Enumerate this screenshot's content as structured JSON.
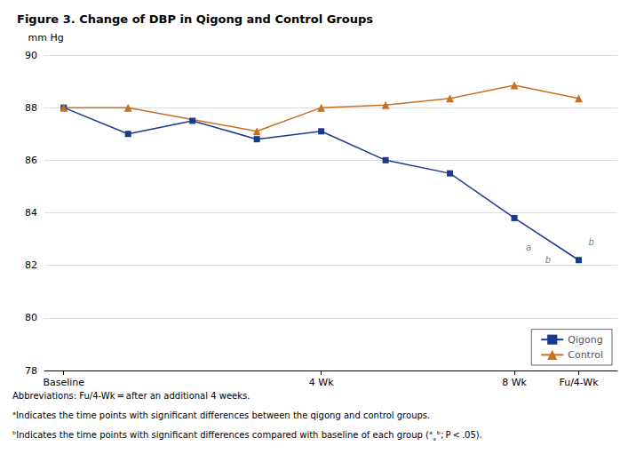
{
  "chart_data": {
    "type": "line",
    "title": "Figure 3. Change of DBP in Qigong and Control Groups",
    "y_label": "mm Hg",
    "series": [
      {
        "name": "Qigong",
        "color": "#1a3a8c",
        "marker": "square",
        "x": [
          0,
          1,
          2,
          3,
          4,
          5,
          6,
          7,
          8
        ],
        "values": [
          88.0,
          87.0,
          87.5,
          86.8,
          87.1,
          86.0,
          85.5,
          83.8,
          82.2
        ]
      },
      {
        "name": "Control",
        "color": "#c87020",
        "marker": "triangle",
        "x": [
          0,
          1,
          3,
          4,
          5,
          6,
          7,
          8
        ],
        "values": [
          88.0,
          88.0,
          87.1,
          88.0,
          88.1,
          88.35,
          88.85,
          88.35
        ]
      }
    ],
    "xlim": [
      -0.3,
      8.6
    ],
    "xticks": [
      {
        "value": 0,
        "label": "Baseline"
      },
      {
        "value": 4,
        "label": "4 Wk"
      },
      {
        "value": 7,
        "label": "8 Wk"
      },
      {
        "value": 8,
        "label": "Fu/4-Wk"
      }
    ],
    "ylim": [
      78,
      90
    ],
    "yticks": [
      78,
      80,
      82,
      84,
      86,
      88,
      90
    ],
    "grid": true,
    "legend": "lower right",
    "annotations": [
      {
        "text": "a",
        "x": 7.18,
        "y": 82.5
      },
      {
        "text": "b",
        "x": 7.48,
        "y": 82.05
      },
      {
        "text": "b",
        "x": 8.15,
        "y": 82.7
      }
    ],
    "footnotes": [
      "Abbreviations: Fu/4-Wk = after an additional 4 weeks.",
      "ᵃIndicates the time points with significant differences between the qigong and control groups.",
      "ᵇIndicates the time points with significant differences compared with baseline of each group (ᵃ˳ᵇ; P < .05)."
    ]
  }
}
